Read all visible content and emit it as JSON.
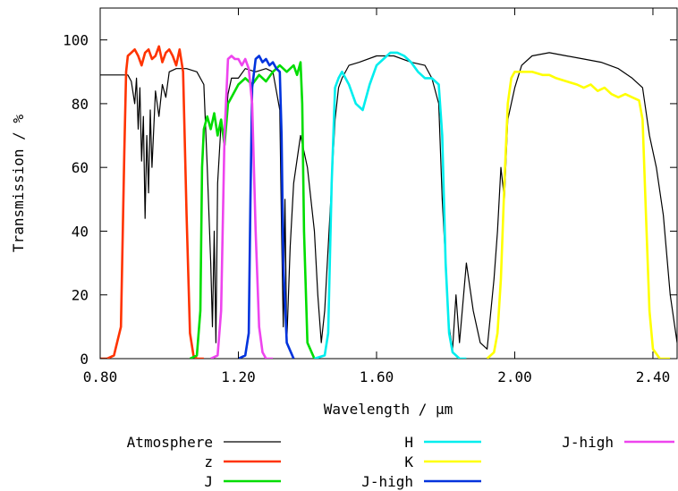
{
  "chart_data": {
    "type": "line",
    "title": "",
    "xlabel": "Wavelength / µm",
    "ylabel": "Transmission / %",
    "xlim": [
      0.8,
      2.47
    ],
    "ylim": [
      0,
      110
    ],
    "xticks": [
      0.8,
      1.2,
      1.6,
      2.0,
      2.4
    ],
    "xtick_labels": [
      "0.80",
      "1.20",
      "1.60",
      "2.00",
      "2.40"
    ],
    "yticks": [
      0,
      20,
      40,
      60,
      80,
      100
    ],
    "ytick_labels": [
      "0",
      "20",
      "40",
      "60",
      "80",
      "100"
    ],
    "grid": false,
    "legend_position": "bottom",
    "series": [
      {
        "name": "Atmosphere",
        "color": "#000000",
        "x": [
          0.8,
          0.83,
          0.86,
          0.88,
          0.89,
          0.9,
          0.905,
          0.91,
          0.915,
          0.92,
          0.925,
          0.93,
          0.935,
          0.94,
          0.945,
          0.95,
          0.96,
          0.97,
          0.98,
          0.99,
          1.0,
          1.02,
          1.05,
          1.08,
          1.1,
          1.11,
          1.12,
          1.125,
          1.13,
          1.135,
          1.14,
          1.15,
          1.16,
          1.17,
          1.18,
          1.2,
          1.22,
          1.25,
          1.28,
          1.3,
          1.32,
          1.325,
          1.33,
          1.335,
          1.34,
          1.35,
          1.36,
          1.38,
          1.4,
          1.42,
          1.43,
          1.44,
          1.45,
          1.46,
          1.47,
          1.48,
          1.49,
          1.5,
          1.52,
          1.55,
          1.6,
          1.65,
          1.7,
          1.74,
          1.76,
          1.78,
          1.79,
          1.8,
          1.81,
          1.82,
          1.83,
          1.84,
          1.86,
          1.88,
          1.9,
          1.92,
          1.94,
          1.95,
          1.96,
          1.97,
          1.98,
          1.99,
          2.0,
          2.02,
          2.05,
          2.1,
          2.15,
          2.2,
          2.25,
          2.3,
          2.34,
          2.37,
          2.39,
          2.41,
          2.43,
          2.45,
          2.47
        ],
        "y": [
          89,
          89,
          89,
          89,
          87,
          80,
          88,
          72,
          85,
          62,
          76,
          44,
          70,
          52,
          78,
          60,
          84,
          76,
          86,
          82,
          90,
          91,
          91,
          90,
          86,
          60,
          30,
          10,
          40,
          5,
          55,
          74,
          70,
          83,
          88,
          88,
          91,
          90,
          91,
          90,
          78,
          40,
          10,
          50,
          5,
          35,
          55,
          70,
          60,
          40,
          20,
          5,
          15,
          35,
          55,
          75,
          85,
          88,
          92,
          93,
          95,
          95,
          93,
          92,
          88,
          80,
          50,
          30,
          10,
          3,
          20,
          5,
          30,
          15,
          5,
          3,
          25,
          40,
          60,
          50,
          75,
          80,
          85,
          92,
          95,
          96,
          95,
          94,
          93,
          91,
          88,
          85,
          70,
          60,
          45,
          20,
          5
        ]
      },
      {
        "name": "z",
        "color": "#ff3300",
        "x": [
          0.8,
          0.82,
          0.84,
          0.86,
          0.87,
          0.875,
          0.88,
          0.89,
          0.9,
          0.91,
          0.92,
          0.93,
          0.94,
          0.95,
          0.96,
          0.97,
          0.98,
          0.99,
          1.0,
          1.01,
          1.02,
          1.03,
          1.04,
          1.05,
          1.06,
          1.07,
          1.08,
          1.1
        ],
        "y": [
          0,
          0,
          1,
          10,
          65,
          90,
          95,
          96,
          97,
          95,
          92,
          96,
          97,
          94,
          95,
          98,
          93,
          96,
          97,
          95,
          92,
          97,
          90,
          45,
          8,
          1,
          0,
          0
        ]
      },
      {
        "name": "J",
        "color": "#00dd00",
        "x": [
          1.06,
          1.08,
          1.09,
          1.095,
          1.1,
          1.11,
          1.12,
          1.13,
          1.14,
          1.15,
          1.16,
          1.17,
          1.18,
          1.19,
          1.2,
          1.22,
          1.24,
          1.26,
          1.28,
          1.3,
          1.32,
          1.34,
          1.36,
          1.37,
          1.38,
          1.385,
          1.39,
          1.4,
          1.42
        ],
        "y": [
          0,
          1,
          15,
          60,
          72,
          76,
          72,
          77,
          70,
          75,
          67,
          80,
          82,
          84,
          86,
          88,
          86,
          89,
          87,
          90,
          92,
          90,
          92,
          89,
          93,
          80,
          40,
          5,
          0
        ]
      },
      {
        "name": "H",
        "color": "#00eeee",
        "x": [
          1.42,
          1.45,
          1.46,
          1.47,
          1.48,
          1.49,
          1.5,
          1.52,
          1.54,
          1.56,
          1.58,
          1.6,
          1.62,
          1.64,
          1.66,
          1.68,
          1.7,
          1.72,
          1.74,
          1.76,
          1.78,
          1.79,
          1.8,
          1.81,
          1.82,
          1.84,
          1.86
        ],
        "y": [
          0,
          1,
          8,
          55,
          85,
          88,
          90,
          86,
          80,
          78,
          86,
          92,
          94,
          96,
          96,
          95,
          93,
          90,
          88,
          88,
          86,
          70,
          30,
          8,
          2,
          0,
          0
        ]
      },
      {
        "name": "K",
        "color": "#ffff00",
        "x": [
          1.92,
          1.94,
          1.95,
          1.96,
          1.97,
          1.98,
          1.99,
          2.0,
          2.02,
          2.05,
          2.08,
          2.1,
          2.12,
          2.15,
          2.18,
          2.2,
          2.22,
          2.24,
          2.26,
          2.28,
          2.3,
          2.32,
          2.34,
          2.36,
          2.37,
          2.38,
          2.39,
          2.4,
          2.42,
          2.45
        ],
        "y": [
          0,
          2,
          8,
          25,
          55,
          80,
          88,
          90,
          90,
          90,
          89,
          89,
          88,
          87,
          86,
          85,
          86,
          84,
          85,
          83,
          82,
          83,
          82,
          81,
          75,
          45,
          15,
          3,
          0,
          0
        ]
      },
      {
        "name": "J-high",
        "color": "#0033dd",
        "x": [
          1.2,
          1.22,
          1.23,
          1.235,
          1.24,
          1.25,
          1.26,
          1.27,
          1.28,
          1.29,
          1.3,
          1.31,
          1.32,
          1.325,
          1.33,
          1.34,
          1.36
        ],
        "y": [
          0,
          1,
          8,
          50,
          85,
          94,
          95,
          93,
          94,
          92,
          93,
          91,
          90,
          70,
          30,
          5,
          0
        ]
      },
      {
        "name": "J-high",
        "color": "#ee44ee",
        "x": [
          1.12,
          1.14,
          1.15,
          1.16,
          1.17,
          1.18,
          1.19,
          1.2,
          1.21,
          1.22,
          1.23,
          1.24,
          1.25,
          1.26,
          1.27,
          1.28,
          1.3
        ],
        "y": [
          0,
          1,
          15,
          70,
          94,
          95,
          94,
          94,
          92,
          94,
          91,
          80,
          40,
          10,
          2,
          0,
          0
        ]
      }
    ]
  }
}
